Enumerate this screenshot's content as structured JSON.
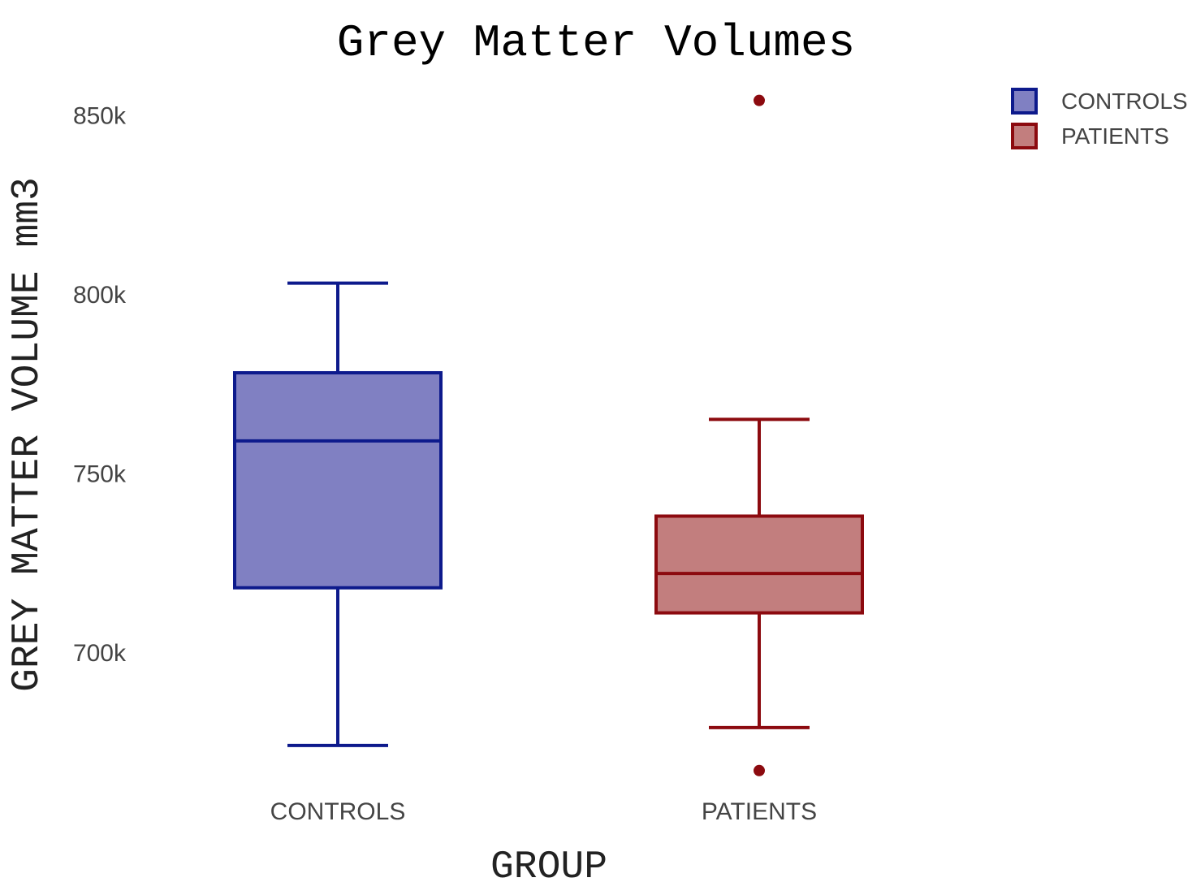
{
  "chart_data": {
    "type": "box",
    "title": "Grey Matter Volumes",
    "xlabel": "GROUP",
    "ylabel": "GREY MATTER VOLUME mm3",
    "categories": [
      "CONTROLS",
      "PATIENTS"
    ],
    "ylim": [
      664000,
      858000
    ],
    "yticks": [
      {
        "value": 700000,
        "label": "700k"
      },
      {
        "value": 750000,
        "label": "750k"
      },
      {
        "value": 800000,
        "label": "800k"
      },
      {
        "value": 850000,
        "label": "850k"
      }
    ],
    "grid": false,
    "legend_position": "top-right",
    "series": [
      {
        "name": "CONTROLS",
        "color": "#0d1a8c",
        "fill": "#8080c2",
        "min": 674000,
        "q1": 718000,
        "median": 759000,
        "q3": 778000,
        "max": 803000,
        "outliers": []
      },
      {
        "name": "PATIENTS",
        "color": "#8c0a0f",
        "fill": "#c27e7e",
        "min": 679000,
        "q1": 711000,
        "median": 722000,
        "q3": 738000,
        "max": 765000,
        "outliers": [
          854000,
          667000
        ]
      }
    ]
  }
}
